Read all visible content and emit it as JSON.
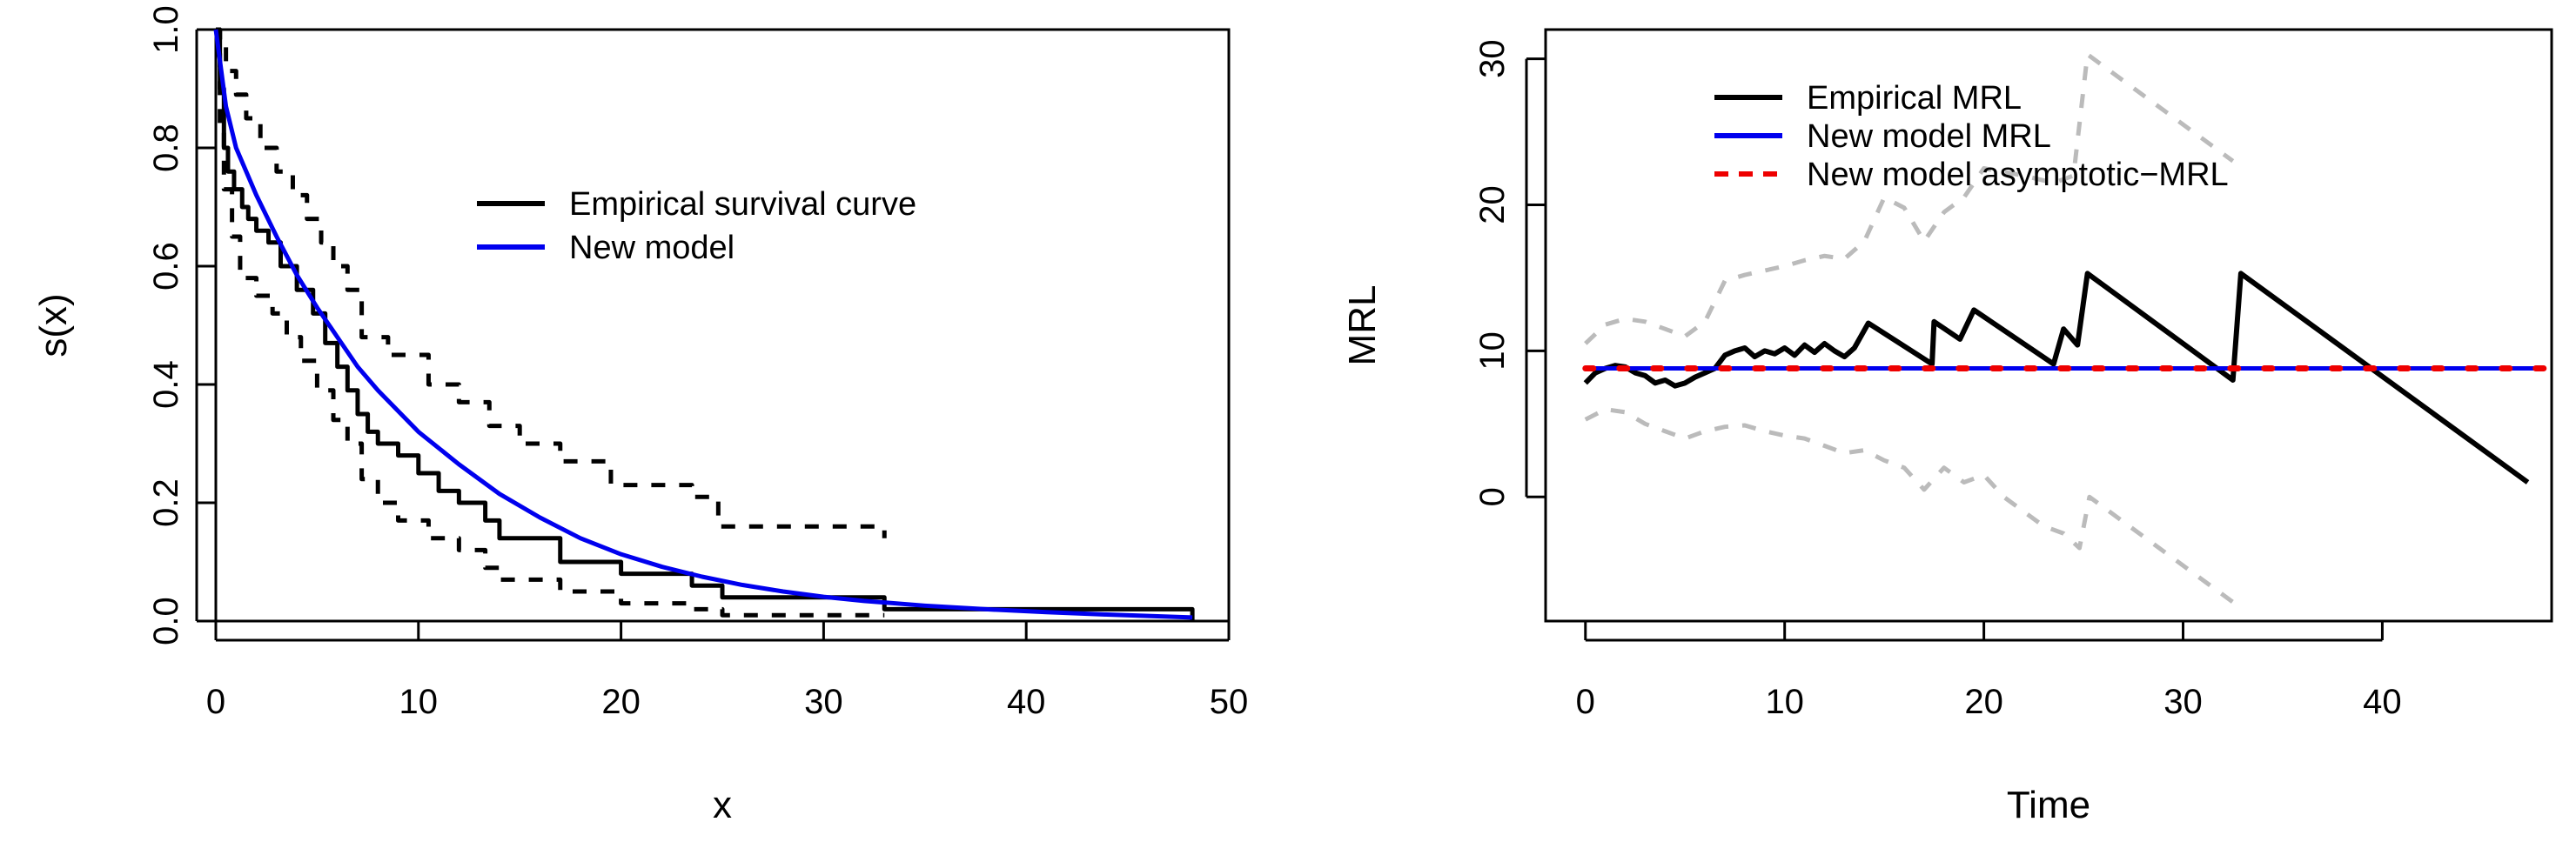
{
  "chart_data": [
    {
      "type": "line",
      "title": "",
      "xlabel": "x",
      "ylabel": "s(x)",
      "xlim": [
        0,
        50
      ],
      "ylim": [
        0,
        1
      ],
      "xticks": [
        "0",
        "10",
        "20",
        "30",
        "40",
        "50"
      ],
      "yticks": [
        "0.0",
        "0.2",
        "0.4",
        "0.6",
        "0.8",
        "1.0"
      ],
      "legend_position": "top-center",
      "series": [
        {
          "name": "Empirical survival curve",
          "style": "step",
          "color": "#000000",
          "legend": true,
          "x": [
            0,
            0.2,
            0.4,
            0.6,
            0.9,
            1.3,
            1.6,
            2.0,
            2.6,
            3.2,
            4.0,
            4.8,
            5.4,
            6.0,
            6.5,
            7.0,
            7.5,
            8.0,
            9.0,
            10.0,
            11.0,
            12.0,
            13.3,
            14.0,
            17.0,
            20.0,
            23.5,
            25.0,
            33.0,
            48.2
          ],
          "y": [
            1.0,
            0.9,
            0.8,
            0.76,
            0.73,
            0.7,
            0.68,
            0.66,
            0.64,
            0.6,
            0.56,
            0.52,
            0.47,
            0.43,
            0.39,
            0.35,
            0.32,
            0.3,
            0.28,
            0.25,
            0.22,
            0.2,
            0.17,
            0.14,
            0.1,
            0.08,
            0.06,
            0.04,
            0.02,
            0.0
          ]
        },
        {
          "name": "Upper confidence band",
          "style": "step-dashed",
          "color": "#000000",
          "legend": false,
          "x": [
            0,
            0.2,
            0.5,
            1.0,
            1.5,
            2.2,
            3.0,
            3.8,
            4.5,
            5.2,
            5.8,
            6.5,
            7.2,
            8.5,
            10.5,
            12.0,
            13.5,
            15.0,
            17.0,
            19.5,
            23.5,
            24.8,
            33.0
          ],
          "y": [
            1.0,
            0.98,
            0.93,
            0.89,
            0.85,
            0.8,
            0.76,
            0.72,
            0.68,
            0.64,
            0.6,
            0.56,
            0.48,
            0.45,
            0.4,
            0.37,
            0.33,
            0.3,
            0.27,
            0.23,
            0.21,
            0.16,
            0.14
          ]
        },
        {
          "name": "Lower confidence band",
          "style": "step-dashed",
          "color": "#000000",
          "legend": false,
          "x": [
            0,
            0.2,
            0.4,
            0.8,
            1.2,
            2.0,
            2.8,
            3.5,
            4.2,
            5.0,
            5.8,
            6.5,
            7.2,
            8.0,
            9.0,
            10.5,
            12.0,
            13.3,
            14.0,
            17.0,
            20.0,
            23.5,
            25.0,
            33.0
          ],
          "y": [
            1.0,
            0.84,
            0.73,
            0.65,
            0.58,
            0.55,
            0.52,
            0.48,
            0.44,
            0.39,
            0.34,
            0.3,
            0.24,
            0.2,
            0.17,
            0.14,
            0.12,
            0.09,
            0.07,
            0.05,
            0.03,
            0.02,
            0.01,
            0.01
          ]
        },
        {
          "name": "New model",
          "style": "smooth",
          "color": "#0000ee",
          "legend": true,
          "x": [
            0,
            0.5,
            1,
            2,
            3,
            4,
            5,
            6,
            7,
            8,
            10,
            12,
            14,
            16,
            18,
            20,
            22,
            24,
            26,
            28,
            30,
            32,
            35,
            38,
            41,
            44,
            48.2
          ],
          "y": [
            1.0,
            0.87,
            0.8,
            0.72,
            0.65,
            0.585,
            0.53,
            0.48,
            0.43,
            0.39,
            0.32,
            0.265,
            0.215,
            0.175,
            0.14,
            0.113,
            0.092,
            0.075,
            0.061,
            0.05,
            0.041,
            0.034,
            0.026,
            0.02,
            0.015,
            0.011,
            0.006
          ]
        }
      ]
    },
    {
      "type": "line",
      "title": "",
      "xlabel": "Time",
      "ylabel": "MRL",
      "xlim": [
        -2,
        48.5
      ],
      "ylim": [
        -8.5,
        32
      ],
      "xticks": [
        "0",
        "10",
        "20",
        "30",
        "40"
      ],
      "yticks": [
        "0",
        "10",
        "20",
        "30"
      ],
      "legend_position": "top-center",
      "series": [
        {
          "name": "Upper confidence band",
          "style": "dashed",
          "color": "#bbbbbb",
          "legend": false,
          "x": [
            0,
            1,
            2,
            3,
            4,
            5,
            6,
            7,
            8,
            9,
            10,
            11,
            12,
            13,
            14,
            15,
            16,
            17,
            18,
            19,
            20,
            22,
            23.5,
            24.5,
            25.2,
            32.5
          ],
          "y": [
            10.5,
            11.8,
            12.2,
            12.0,
            11.5,
            11.0,
            12.0,
            14.8,
            15.2,
            15.5,
            15.8,
            16.2,
            16.5,
            16.3,
            17.5,
            20.5,
            19.8,
            17.5,
            19.5,
            20.5,
            22.5,
            22.0,
            21.5,
            22.0,
            30.3,
            23.0
          ]
        },
        {
          "name": "Lower confidence band",
          "style": "dashed",
          "color": "#bbbbbb",
          "legend": false,
          "x": [
            0,
            1,
            2,
            3,
            4,
            5,
            6,
            7,
            8,
            9,
            10,
            11,
            12,
            13,
            14,
            15,
            16,
            17,
            18,
            19,
            20,
            21,
            22,
            23,
            24,
            24.8,
            25.3,
            32.5
          ],
          "y": [
            5.3,
            6.0,
            5.8,
            5.0,
            4.5,
            4.0,
            4.5,
            4.8,
            4.9,
            4.5,
            4.2,
            4.0,
            3.5,
            3.0,
            3.2,
            2.5,
            2.0,
            0.5,
            2.0,
            1.0,
            1.5,
            0.0,
            -1.0,
            -2.0,
            -2.5,
            -3.5,
            0.0,
            -7.2
          ]
        },
        {
          "name": "Empirical MRL",
          "style": "solid",
          "color": "#000000",
          "legend": true,
          "x": [
            0,
            0.5,
            1,
            1.5,
            2,
            2.5,
            3,
            3.5,
            4,
            4.5,
            5,
            5.5,
            6,
            6.5,
            7,
            7.5,
            8,
            8.5,
            9,
            9.5,
            10,
            10.5,
            11,
            11.5,
            12,
            12.5,
            13,
            13.5,
            14.2,
            17.4,
            17.5,
            18.8,
            19.5,
            23.5,
            24.0,
            24.7,
            25.2,
            32.5,
            32.9,
            47.3
          ],
          "y": [
            7.8,
            8.5,
            8.8,
            9.0,
            8.9,
            8.5,
            8.3,
            7.8,
            8.0,
            7.6,
            7.8,
            8.2,
            8.5,
            8.8,
            9.7,
            10.0,
            10.2,
            9.6,
            10.0,
            9.8,
            10.2,
            9.7,
            10.4,
            9.9,
            10.5,
            10.0,
            9.6,
            10.2,
            11.9,
            9.1,
            12.0,
            10.8,
            12.8,
            9.1,
            11.5,
            10.4,
            15.3,
            8.0,
            15.3,
            1.0
          ]
        },
        {
          "name": "New model MRL",
          "style": "solid",
          "color": "#0000ee",
          "legend": true,
          "x": [
            0,
            48.2
          ],
          "y": [
            8.8,
            8.8
          ]
        },
        {
          "name": "New model asymptotic−MRL",
          "style": "dashed",
          "color": "#ee0000",
          "legend": true,
          "x": [
            0,
            48.2
          ],
          "y": [
            8.8,
            8.8
          ]
        }
      ]
    }
  ]
}
